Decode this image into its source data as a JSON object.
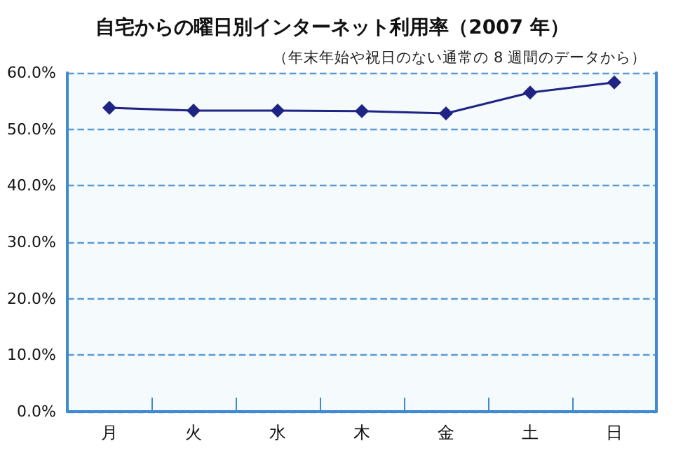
{
  "chart_data": {
    "type": "line",
    "title": "自宅からの曜日別インターネット利用率（2007 年）",
    "subtitle": "（年末年始や祝日のない通常の 8 週間のデータから）",
    "categories": [
      "月",
      "火",
      "水",
      "木",
      "金",
      "土",
      "日"
    ],
    "series": [
      {
        "color": "#1f2383",
        "values": [
          53.8,
          53.3,
          53.3,
          53.2,
          52.8,
          56.5,
          58.3
        ]
      }
    ],
    "ylim": [
      0,
      60
    ],
    "yticks": [
      {
        "value": 0,
        "label": "0.0%"
      },
      {
        "value": 10,
        "label": "10.0%"
      },
      {
        "value": 20,
        "label": "20.0%"
      },
      {
        "value": 30,
        "label": "30.0%"
      },
      {
        "value": 40,
        "label": "40.0%"
      },
      {
        "value": 50,
        "label": "50.0%"
      },
      {
        "value": 60,
        "label": "60.0%"
      }
    ],
    "grid": "y",
    "marker": "diamond",
    "line_style": "solid"
  }
}
